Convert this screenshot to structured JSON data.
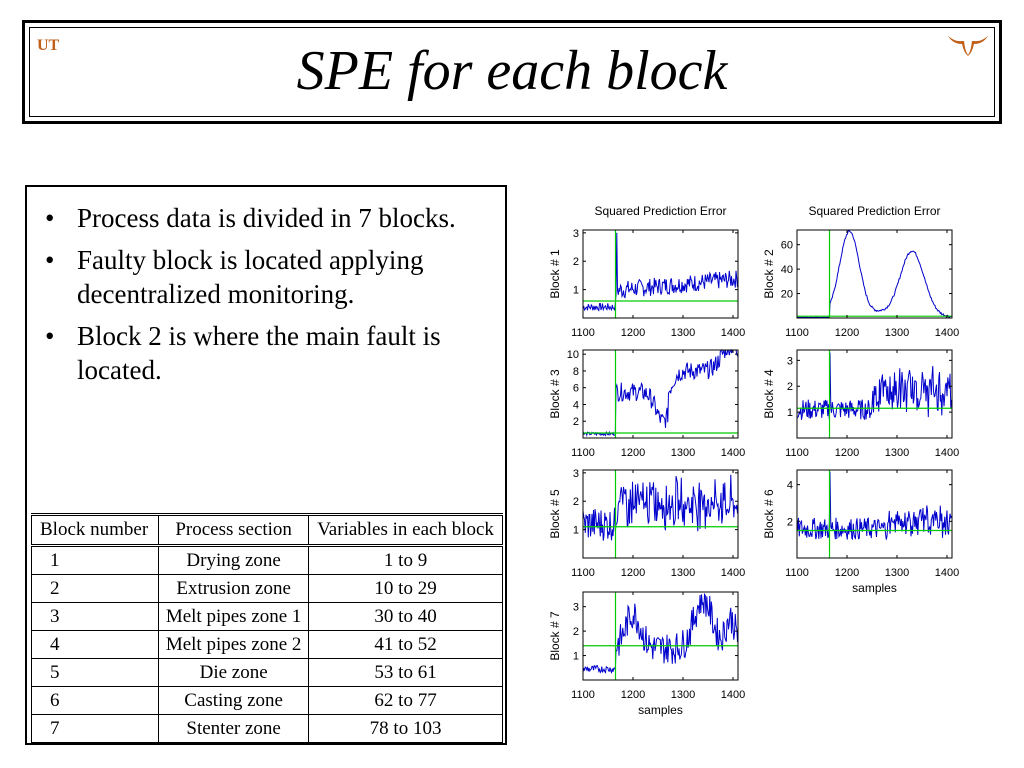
{
  "slide": {
    "title": "SPE for each block",
    "bullets": [
      "Process data is divided in 7 blocks.",
      "Faulty block is located applying decentralized monitoring.",
      "Block 2 is where the main fault is located."
    ],
    "bullet_symbol": "•",
    "logo_left_text": "UT",
    "logo_right_name": "longhorn-logo-icon",
    "accent_color": "#c1601a"
  },
  "table": {
    "headers": [
      "Block number",
      "Process section",
      "Variables in each block"
    ],
    "rows": [
      [
        "1",
        "Drying zone",
        "1 to 9"
      ],
      [
        "2",
        "Extrusion zone",
        "10 to 29"
      ],
      [
        "3",
        "Melt pipes zone 1",
        "30 to 40"
      ],
      [
        "4",
        "Melt pipes zone 2",
        "41 to 52"
      ],
      [
        "5",
        "Die zone",
        "53 to 61"
      ],
      [
        "6",
        "Casting zone",
        "62 to 77"
      ],
      [
        "7",
        "Stenter zone",
        "78 to 103"
      ]
    ]
  },
  "chart_data": [
    {
      "type": "line",
      "title": "Squared Prediction Error",
      "ylabel": "Block # 1",
      "xlabel": "",
      "xlim": [
        1100,
        1410
      ],
      "ylim": [
        0,
        3.1
      ],
      "xticks": [
        "1100",
        "1200",
        "1300",
        "1400"
      ],
      "yticks": [
        "1",
        "2",
        "3"
      ],
      "fault_x": 1165,
      "limit": 0.6,
      "series_color": "#0000cc",
      "limit_color": "#00cc00"
    },
    {
      "type": "line",
      "title": "Squared Prediction Error",
      "ylabel": "Block # 2",
      "xlabel": "",
      "xlim": [
        1100,
        1410
      ],
      "ylim": [
        0,
        72
      ],
      "xticks": [
        "1100",
        "1200",
        "1300",
        "1400"
      ],
      "yticks": [
        "20",
        "40",
        "60"
      ],
      "fault_x": 1165,
      "limit": 1.5,
      "series_color": "#0000cc",
      "limit_color": "#00cc00"
    },
    {
      "type": "line",
      "title": "",
      "ylabel": "Block # 3",
      "xlabel": "",
      "xlim": [
        1100,
        1410
      ],
      "ylim": [
        0,
        10.5
      ],
      "xticks": [
        "1100",
        "1200",
        "1300",
        "1400"
      ],
      "yticks": [
        "2",
        "4",
        "6",
        "8",
        "10"
      ],
      "fault_x": 1165,
      "limit": 0.6,
      "series_color": "#0000cc",
      "limit_color": "#00cc00"
    },
    {
      "type": "line",
      "title": "",
      "ylabel": "Block # 4",
      "xlabel": "",
      "xlim": [
        1100,
        1410
      ],
      "ylim": [
        0,
        3.4
      ],
      "xticks": [
        "1100",
        "1200",
        "1300",
        "1400"
      ],
      "yticks": [
        "1",
        "2",
        "3"
      ],
      "fault_x": 1165,
      "limit": 1.15,
      "series_color": "#0000cc",
      "limit_color": "#00cc00"
    },
    {
      "type": "line",
      "title": "",
      "ylabel": "Block # 5",
      "xlabel": "",
      "xlim": [
        1100,
        1410
      ],
      "ylim": [
        0,
        3.1
      ],
      "xticks": [
        "1100",
        "1200",
        "1300",
        "1400"
      ],
      "yticks": [
        "1",
        "2",
        "3"
      ],
      "fault_x": 1165,
      "limit": 1.1,
      "series_color": "#0000cc",
      "limit_color": "#00cc00"
    },
    {
      "type": "line",
      "title": "",
      "ylabel": "Block # 6",
      "xlabel": "samples",
      "xlim": [
        1100,
        1410
      ],
      "ylim": [
        0,
        4.8
      ],
      "xticks": [
        "1100",
        "1200",
        "1300",
        "1400"
      ],
      "yticks": [
        "2",
        "4"
      ],
      "fault_x": 1165,
      "limit": 1.5,
      "series_color": "#0000cc",
      "limit_color": "#00cc00"
    },
    {
      "type": "line",
      "title": "",
      "ylabel": "Block # 7",
      "xlabel": "samples",
      "xlim": [
        1100,
        1410
      ],
      "ylim": [
        0,
        3.6
      ],
      "xticks": [
        "1100",
        "1200",
        "1300",
        "1400"
      ],
      "yticks": [
        "1",
        "2",
        "3"
      ],
      "fault_x": 1165,
      "limit": 1.4,
      "series_color": "#0000cc",
      "limit_color": "#00cc00"
    }
  ]
}
